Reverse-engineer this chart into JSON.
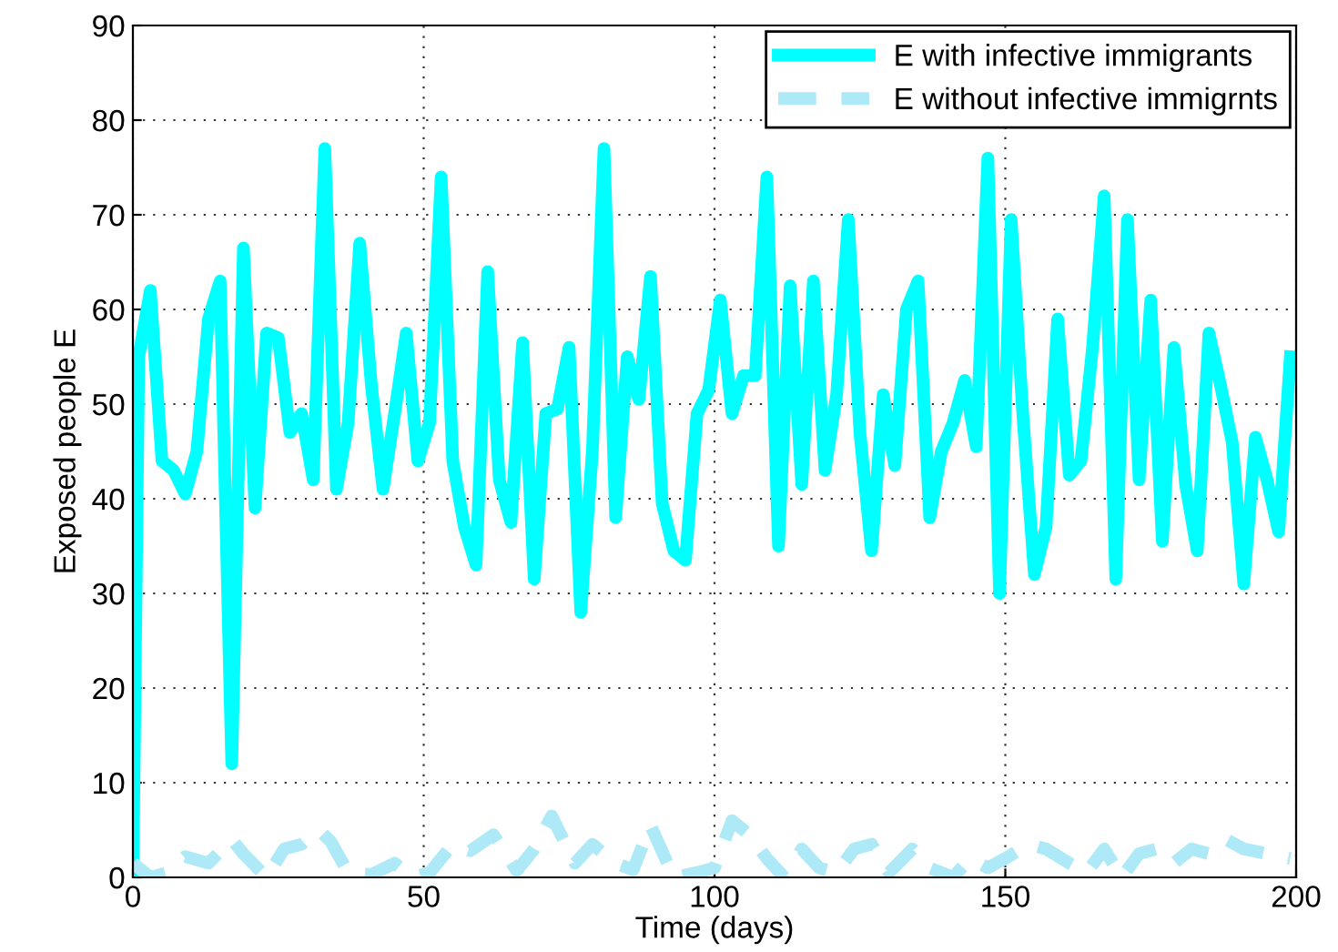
{
  "chart_data": {
    "type": "line",
    "xlabel": "Time (days)",
    "ylabel": "Exposed people E",
    "xlim": [
      0,
      200
    ],
    "ylim": [
      0,
      90
    ],
    "xticks": [
      0,
      50,
      100,
      150,
      200
    ],
    "yticks": [
      0,
      10,
      20,
      30,
      40,
      50,
      60,
      70,
      80,
      90
    ],
    "grid": true,
    "legend": "top right",
    "series": [
      {
        "name": "E with infective immigrants",
        "color": "#00ffff",
        "line_style": "solid",
        "x": [
          0,
          1,
          3,
          5,
          7,
          9,
          11,
          13,
          15,
          17,
          19,
          21,
          23,
          25,
          27,
          29,
          31,
          33,
          35,
          37,
          39,
          41,
          43,
          45,
          47,
          49,
          51,
          53,
          55,
          57,
          59,
          61,
          63,
          65,
          67,
          69,
          71,
          73,
          75,
          77,
          79,
          81,
          83,
          85,
          87,
          89,
          91,
          93,
          95,
          97,
          99,
          101,
          103,
          105,
          107,
          109,
          111,
          113,
          115,
          117,
          119,
          121,
          123,
          125,
          127,
          129,
          131,
          133,
          135,
          137,
          139,
          141,
          143,
          145,
          147,
          149,
          151,
          153,
          155,
          157,
          159,
          161,
          163,
          165,
          167,
          169,
          171,
          173,
          175,
          177,
          179,
          181,
          183,
          185,
          187,
          189,
          191,
          193,
          195,
          197,
          199
        ],
        "values": [
          0,
          55,
          62,
          44,
          43,
          40.5,
          45,
          59,
          63,
          12,
          66.5,
          39,
          57.5,
          57,
          47,
          49,
          42,
          77,
          41,
          48,
          67,
          52,
          41,
          49,
          57.5,
          44,
          48,
          74,
          44,
          37,
          33,
          64,
          42,
          37.5,
          56.5,
          31.5,
          49,
          49.5,
          56,
          28,
          45,
          77,
          38,
          55,
          50.5,
          63.5,
          39.5,
          34.5,
          33.5,
          49,
          51.5,
          61,
          49,
          53,
          53,
          74,
          35,
          62.5,
          41.5,
          63,
          43,
          51,
          69.5,
          47,
          34.5,
          51,
          43.5,
          60,
          63,
          38,
          45,
          48,
          52.5,
          45.5,
          76,
          30,
          69.5,
          49,
          32,
          37,
          59,
          42.5,
          44,
          56,
          72,
          31.5,
          69.5,
          42,
          61,
          35.5,
          56,
          41.5,
          34.5,
          57.5,
          52,
          46,
          31,
          46.5,
          42,
          36.5,
          55
        ]
      },
      {
        "name": "E without infective immigrnts",
        "color": "#aee9f8",
        "line_style": "dashed",
        "x": [
          0,
          3,
          6,
          9,
          13,
          17,
          19,
          23,
          26,
          29,
          32,
          34,
          37,
          41,
          45,
          48,
          51,
          55,
          58,
          62,
          66,
          69,
          72,
          76,
          79,
          83,
          86,
          89,
          93,
          97,
          100,
          103,
          106,
          109,
          112,
          115,
          118,
          121,
          124,
          127,
          130,
          134,
          137,
          141,
          144,
          147,
          150,
          154,
          157,
          161,
          164,
          167,
          170,
          173,
          176,
          179,
          182,
          185,
          188,
          191,
          195,
          199
        ],
        "values": [
          1.5,
          0,
          0.5,
          2.2,
          1.5,
          4,
          2.5,
          0,
          3,
          3.5,
          5,
          3.8,
          0.5,
          0.3,
          1.5,
          0,
          0.5,
          3.5,
          2.8,
          4.5,
          0.7,
          3,
          6.5,
          1.5,
          3.5,
          1.5,
          0.8,
          5.5,
          0,
          0.5,
          1,
          6,
          4.5,
          2,
          0,
          3,
          1,
          0.5,
          3,
          3.5,
          0.5,
          3,
          1,
          0,
          2,
          1,
          2,
          3.5,
          3,
          1.5,
          0.5,
          3,
          0,
          2.5,
          3,
          1.5,
          3,
          2.5,
          4,
          3,
          2.5,
          2
        ]
      }
    ]
  }
}
